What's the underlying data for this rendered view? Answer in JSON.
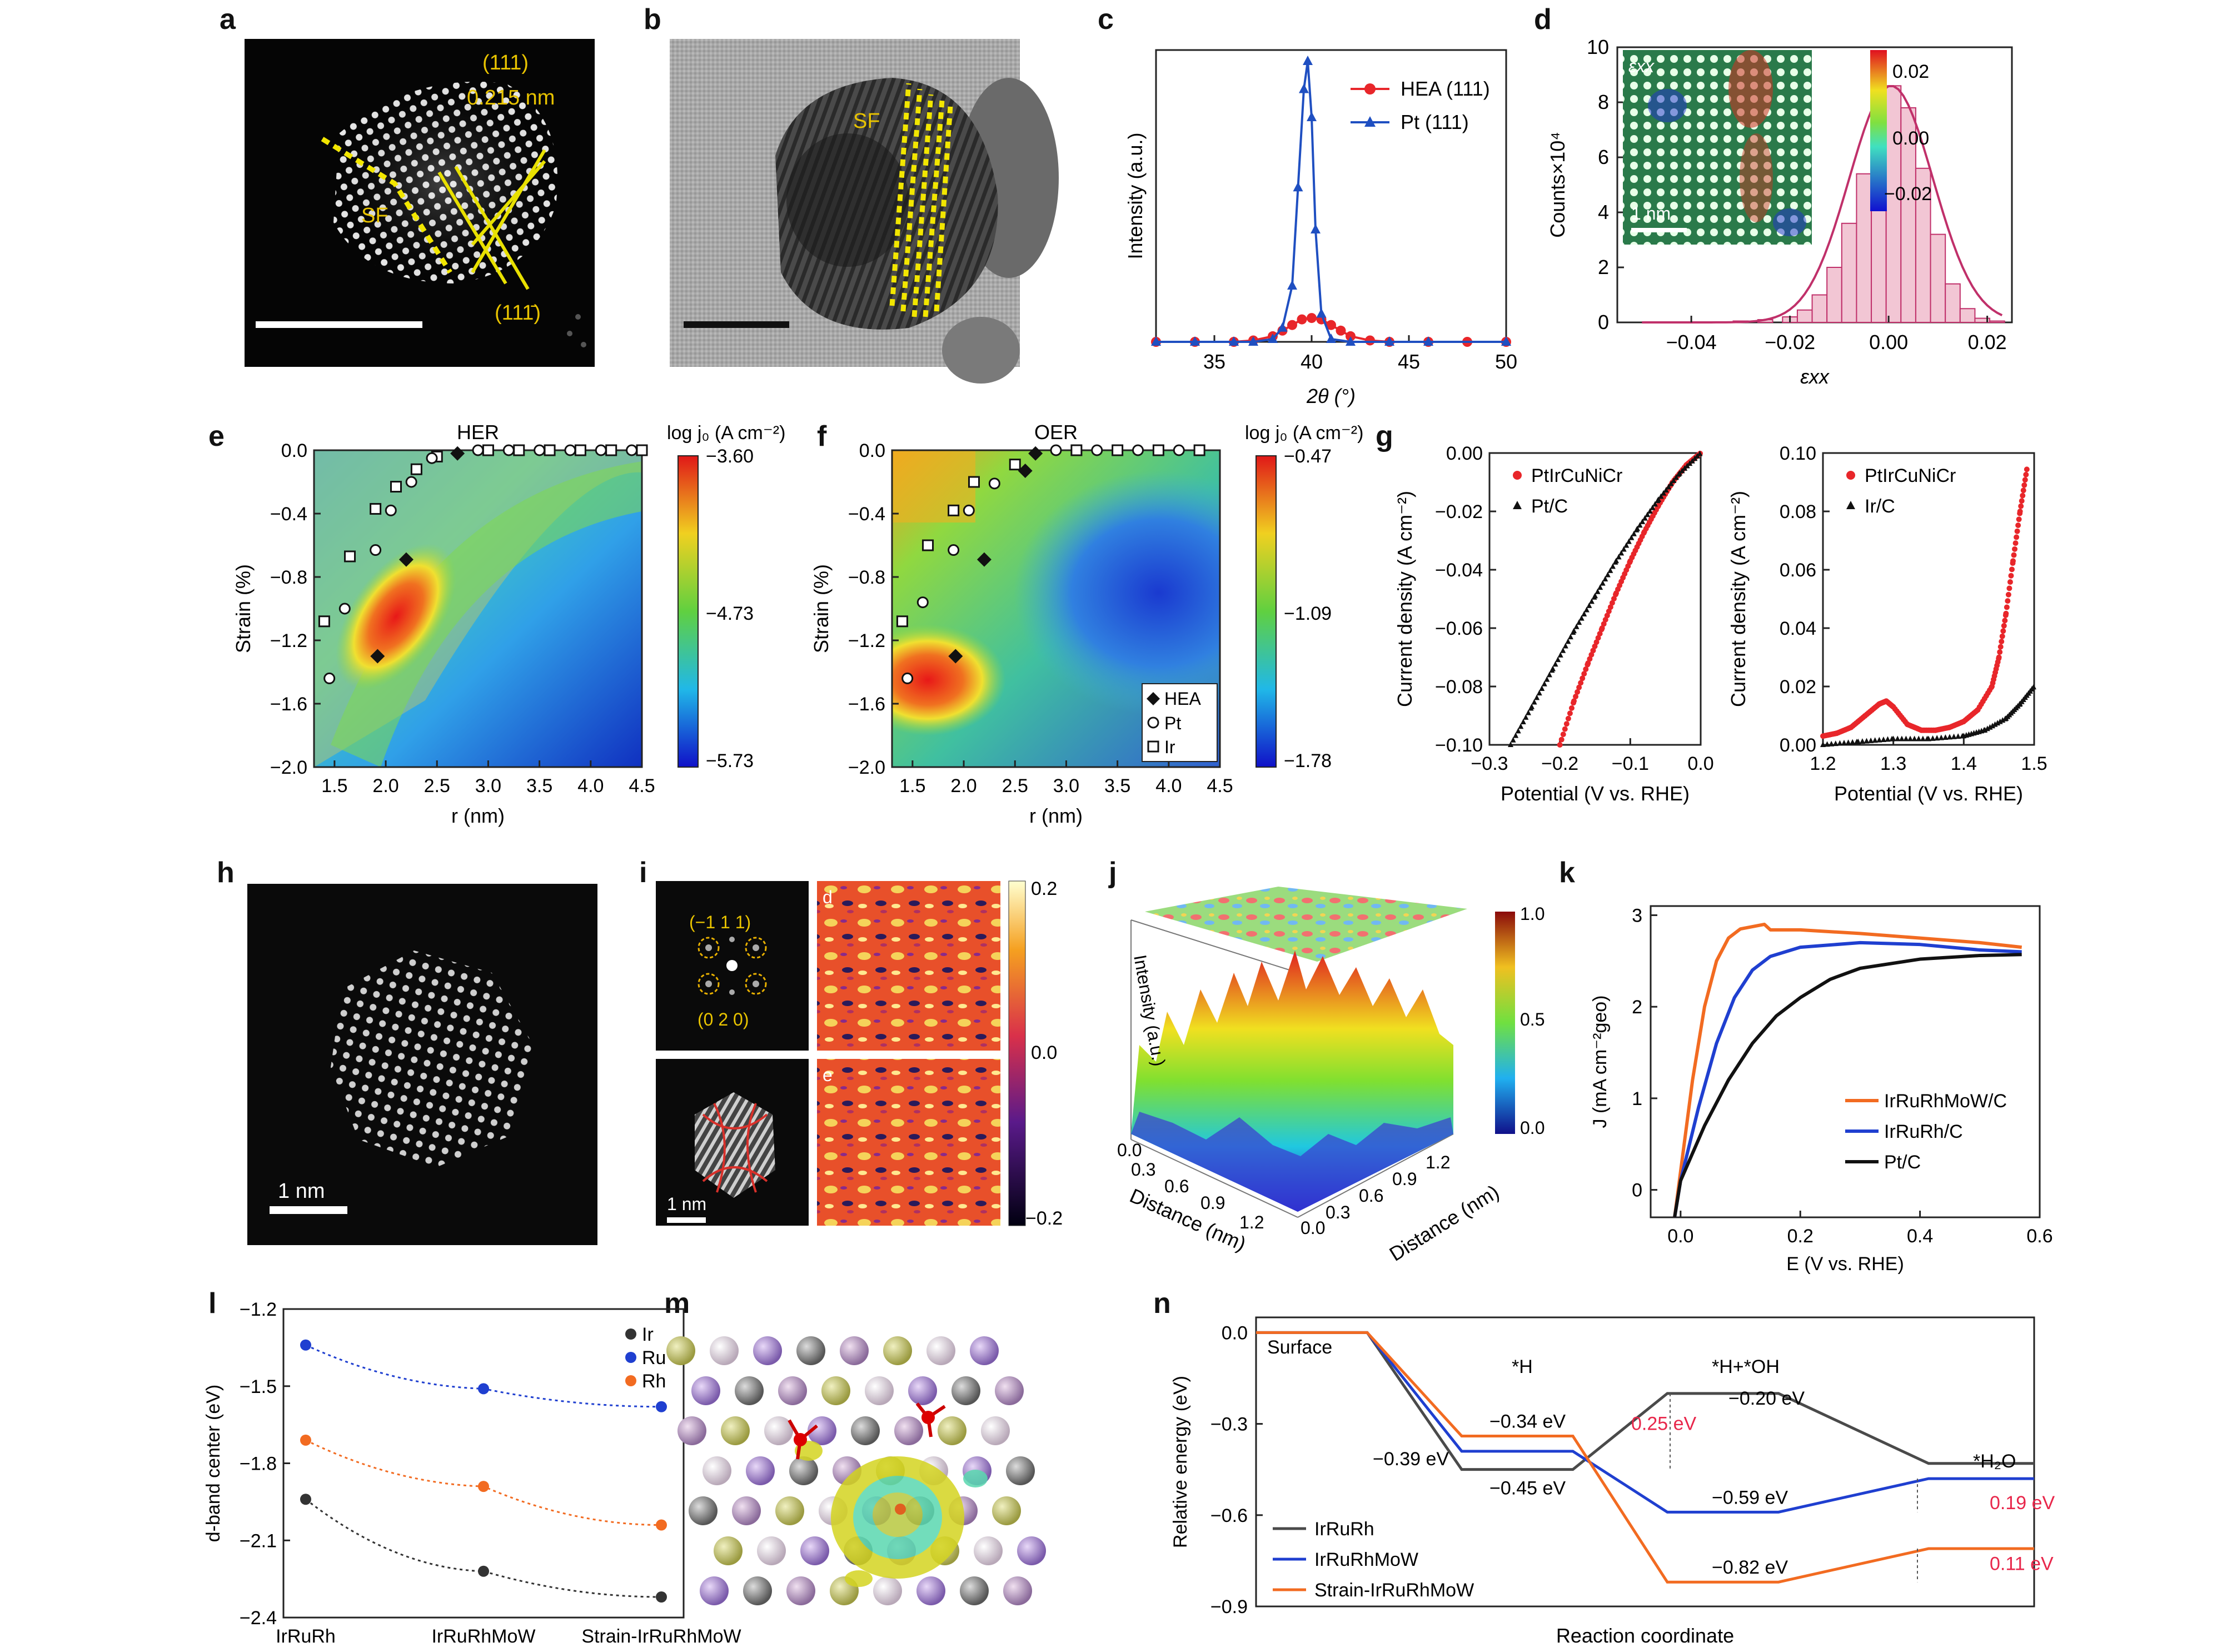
{
  "letters": {
    "a": "a",
    "b": "b",
    "c": "c",
    "d": "d",
    "e": "e",
    "f": "f",
    "g": "g",
    "h": "h",
    "i": "i",
    "j": "j",
    "k": "k",
    "l": "l",
    "m": "m",
    "n": "n"
  },
  "panel_a": {
    "plane1": "(111)",
    "spacing": "0.215 nm",
    "sf": "SF",
    "plane2": "(111̄)"
  },
  "panel_b": {
    "sf": "SF"
  },
  "panel_c": {
    "chart_data": {
      "type": "line",
      "xlabel": "2θ (°)",
      "ylabel": "Intensity (a.u.)",
      "xlim": [
        32,
        50
      ],
      "xticks": [
        35,
        40,
        45,
        50
      ],
      "series": [
        {
          "name": "HEA (111)",
          "color": "#e8262a",
          "x": [
            32,
            34,
            36,
            37,
            38,
            38.5,
            39,
            39.5,
            40,
            40.5,
            41,
            41.5,
            42,
            43,
            44,
            46,
            48,
            50
          ],
          "y": [
            0,
            0,
            0,
            0.005,
            0.02,
            0.04,
            0.06,
            0.08,
            0.085,
            0.08,
            0.06,
            0.04,
            0.02,
            0.005,
            0,
            0,
            0,
            0
          ]
        },
        {
          "name": "Pt (111)",
          "color": "#1f4fc1",
          "x": [
            32,
            34,
            36,
            37,
            38,
            38.5,
            39,
            39.3,
            39.6,
            39.8,
            40,
            40.2,
            40.5,
            41,
            42,
            44,
            46,
            50
          ],
          "y": [
            0,
            0,
            0,
            0,
            0.01,
            0.05,
            0.2,
            0.55,
            0.9,
            1.0,
            0.8,
            0.4,
            0.1,
            0.01,
            0,
            0,
            0,
            0
          ]
        }
      ]
    }
  },
  "panel_d": {
    "chart_data": {
      "type": "bar",
      "xlabel": "εxx",
      "ylabel": "Counts×10⁴",
      "xlim": [
        -0.055,
        0.025
      ],
      "ylim": [
        0,
        10
      ],
      "xticks": [
        -0.04,
        -0.02,
        0.0,
        0.02
      ],
      "yticks": [
        0,
        2,
        4,
        6,
        8,
        10
      ],
      "bins_center": [
        -0.035,
        -0.03,
        -0.025,
        -0.02,
        -0.017,
        -0.014,
        -0.011,
        -0.008,
        -0.005,
        -0.002,
        0.001,
        0.004,
        0.007,
        0.01,
        0.013,
        0.016,
        0.019,
        0.022
      ],
      "values": [
        0.02,
        0.05,
        0.1,
        0.2,
        0.45,
        1.0,
        2.0,
        3.6,
        5.4,
        7.2,
        8.6,
        7.8,
        5.6,
        3.2,
        1.4,
        0.5,
        0.15,
        0.05
      ]
    },
    "colorbar": {
      "ticks": [
        "0.02",
        "0.00",
        "−0.02"
      ]
    },
    "inset_label": "εxx",
    "scale": "1 nm"
  },
  "panel_e": {
    "title": "HER",
    "cbar_title": "log j₀ (A cm⁻²)",
    "cbar_ticks": [
      "−3.60",
      "−4.73",
      "−5.73"
    ],
    "chart_data": {
      "type": "heatmap",
      "xlabel": "r (nm)",
      "ylabel": "Strain (%)",
      "xlim": [
        1.3,
        4.5
      ],
      "ylim": [
        -2.0,
        0.0
      ],
      "xticks": [
        "1.5",
        "2.0",
        "2.5",
        "3.0",
        "3.5",
        "4.0",
        "4.5"
      ],
      "yticks": [
        "0.0",
        "−0.4",
        "−0.8",
        "−1.2",
        "−1.6",
        "−2.0"
      ],
      "HEA": [
        [
          2.7,
          -0.02
        ],
        [
          2.2,
          -0.69
        ],
        [
          1.92,
          -1.3
        ]
      ],
      "Pt": [
        [
          1.45,
          -1.44
        ],
        [
          1.6,
          -1.0
        ],
        [
          1.9,
          -0.63
        ],
        [
          2.05,
          -0.38
        ],
        [
          2.25,
          -0.2
        ],
        [
          2.45,
          -0.05
        ],
        [
          2.9,
          0
        ],
        [
          3.2,
          0
        ],
        [
          3.5,
          0
        ],
        [
          3.8,
          0
        ],
        [
          4.1,
          0
        ],
        [
          4.4,
          0
        ]
      ],
      "Ir": [
        [
          1.4,
          -1.08
        ],
        [
          1.65,
          -0.67
        ],
        [
          1.9,
          -0.37
        ],
        [
          2.1,
          -0.23
        ],
        [
          2.3,
          -0.12
        ],
        [
          2.5,
          -0.04
        ],
        [
          3.0,
          0
        ],
        [
          3.3,
          0
        ],
        [
          3.6,
          0
        ],
        [
          3.9,
          0
        ],
        [
          4.2,
          0
        ],
        [
          4.5,
          0
        ]
      ]
    }
  },
  "panel_f": {
    "title": "OER",
    "cbar_title": "log j₀ (A cm⁻²)",
    "cbar_ticks": [
      "−0.47",
      "−1.09",
      "−1.78"
    ],
    "legend": [
      "HEA",
      "Pt",
      "Ir"
    ],
    "chart_data": {
      "type": "heatmap",
      "xlabel": "r (nm)",
      "ylabel": "Strain (%)",
      "xlim": [
        1.3,
        4.5
      ],
      "ylim": [
        -2.0,
        0.0
      ],
      "xticks": [
        "1.5",
        "2.0",
        "2.5",
        "3.0",
        "3.5",
        "4.0",
        "4.5"
      ],
      "yticks": [
        "0.0",
        "−0.4",
        "−0.8",
        "−1.2",
        "−1.6",
        "−2.0"
      ],
      "HEA": [
        [
          2.7,
          -0.02
        ],
        [
          2.6,
          -0.13
        ],
        [
          2.2,
          -0.69
        ],
        [
          1.92,
          -1.3
        ]
      ],
      "Pt": [
        [
          1.45,
          -1.44
        ],
        [
          1.6,
          -0.96
        ],
        [
          1.9,
          -0.63
        ],
        [
          2.05,
          -0.38
        ],
        [
          2.3,
          -0.21
        ],
        [
          2.9,
          0
        ],
        [
          3.3,
          0
        ],
        [
          3.7,
          0
        ],
        [
          4.1,
          0
        ]
      ],
      "Ir": [
        [
          1.4,
          -1.08
        ],
        [
          1.65,
          -0.6
        ],
        [
          1.9,
          -0.38
        ],
        [
          2.1,
          -0.2
        ],
        [
          2.5,
          -0.09
        ],
        [
          3.1,
          0
        ],
        [
          3.5,
          0
        ],
        [
          3.9,
          0
        ],
        [
          4.3,
          0
        ]
      ]
    }
  },
  "panel_g1": {
    "chart_data": {
      "type": "scatter",
      "xlabel": "Potential (V vs. RHE)",
      "ylabel": "Current density (A cm⁻²)",
      "xlim": [
        -0.3,
        0.0
      ],
      "ylim": [
        -0.1,
        0.0
      ],
      "xticks": [
        "−0.3",
        "−0.2",
        "−0.1",
        "0.0"
      ],
      "yticks": [
        "0.00",
        "−0.02",
        "−0.04",
        "−0.06",
        "−0.08",
        "−0.10"
      ],
      "series": [
        {
          "name": "PtIrCuNiCr",
          "color": "#e8262a",
          "x": [
            -0.2,
            -0.18,
            -0.16,
            -0.14,
            -0.12,
            -0.1,
            -0.08,
            -0.06,
            -0.04,
            -0.02,
            0.0
          ],
          "y": [
            -0.1,
            -0.085,
            -0.072,
            -0.06,
            -0.048,
            -0.037,
            -0.027,
            -0.018,
            -0.01,
            -0.004,
            0
          ]
        },
        {
          "name": "Pt/C",
          "color": "#111111",
          "x": [
            -0.27,
            -0.24,
            -0.21,
            -0.18,
            -0.15,
            -0.12,
            -0.09,
            -0.06,
            -0.03,
            0.0
          ],
          "y": [
            -0.1,
            -0.087,
            -0.074,
            -0.061,
            -0.049,
            -0.037,
            -0.026,
            -0.016,
            -0.007,
            0
          ]
        }
      ]
    }
  },
  "panel_g2": {
    "chart_data": {
      "type": "scatter",
      "xlabel": "Potential (V vs. RHE)",
      "ylabel": "Current density (A cm⁻²)",
      "xlim": [
        1.2,
        1.5
      ],
      "ylim": [
        0.0,
        0.1
      ],
      "xticks": [
        "1.2",
        "1.3",
        "1.4",
        "1.5"
      ],
      "yticks": [
        "0.00",
        "0.02",
        "0.04",
        "0.06",
        "0.08",
        "0.10"
      ],
      "series": [
        {
          "name": "PtIrCuNiCr",
          "color": "#e8262a",
          "x": [
            1.2,
            1.22,
            1.24,
            1.26,
            1.28,
            1.29,
            1.3,
            1.32,
            1.34,
            1.36,
            1.38,
            1.4,
            1.42,
            1.44,
            1.45,
            1.46,
            1.47,
            1.48,
            1.49
          ],
          "y": [
            0.003,
            0.004,
            0.006,
            0.01,
            0.014,
            0.015,
            0.013,
            0.007,
            0.005,
            0.005,
            0.006,
            0.008,
            0.012,
            0.02,
            0.03,
            0.045,
            0.063,
            0.08,
            0.095
          ]
        },
        {
          "name": "Ir/C",
          "color": "#111111",
          "x": [
            1.2,
            1.25,
            1.3,
            1.35,
            1.4,
            1.43,
            1.46,
            1.48,
            1.5
          ],
          "y": [
            0,
            0.001,
            0.002,
            0.002,
            0.003,
            0.005,
            0.009,
            0.014,
            0.02
          ]
        }
      ]
    }
  },
  "panel_h": {
    "scale": "1 nm"
  },
  "panel_i": {
    "plane1": "(−1 1 1)",
    "plane2": "(0 2 0)",
    "map_d": "d",
    "map_e": "e",
    "scale": "1 nm",
    "cbar_ticks": [
      "0.2",
      "0.0",
      "−0.2"
    ]
  },
  "panel_j": {
    "zlabel": "Intensity (a.u.)",
    "xlabel": "Distance (nm)",
    "ylabel": "Distance (nm)",
    "xticks": [
      "0.0",
      "0.3",
      "0.6",
      "0.9",
      "1.2"
    ],
    "yticks": [
      "0.0",
      "0.3",
      "0.6",
      "0.9",
      "1.2"
    ],
    "cbar_ticks": [
      "1.0",
      "0.5",
      "0.0"
    ]
  },
  "panel_k": {
    "chart_data": {
      "type": "line",
      "xlabel": "E (V vs. RHE)",
      "ylabel": "J (mA cm⁻²geo)",
      "xlim": [
        -0.05,
        0.6
      ],
      "ylim": [
        -0.3,
        3.1
      ],
      "xticks": [
        "0.0",
        "0.2",
        "0.4",
        "0.6"
      ],
      "yticks": [
        "0",
        "1",
        "2",
        "3"
      ],
      "series": [
        {
          "name": "IrRuRhMoW/C",
          "color": "#f26b21",
          "x": [
            -0.01,
            0.0,
            0.02,
            0.04,
            0.06,
            0.08,
            0.1,
            0.14,
            0.15,
            0.2,
            0.3,
            0.4,
            0.5,
            0.57
          ],
          "y": [
            -0.3,
            0.2,
            1.2,
            2.0,
            2.5,
            2.75,
            2.85,
            2.9,
            2.84,
            2.84,
            2.8,
            2.75,
            2.7,
            2.65
          ]
        },
        {
          "name": "IrRuRh/C",
          "color": "#1f3fd0",
          "x": [
            -0.01,
            0.0,
            0.03,
            0.06,
            0.09,
            0.12,
            0.15,
            0.2,
            0.3,
            0.4,
            0.5,
            0.57
          ],
          "y": [
            -0.3,
            0.1,
            0.9,
            1.6,
            2.1,
            2.4,
            2.55,
            2.65,
            2.7,
            2.68,
            2.62,
            2.6
          ]
        },
        {
          "name": "Pt/C",
          "color": "#111111",
          "x": [
            -0.01,
            0.0,
            0.04,
            0.08,
            0.12,
            0.16,
            0.2,
            0.25,
            0.3,
            0.4,
            0.5,
            0.57
          ],
          "y": [
            -0.3,
            0.1,
            0.7,
            1.2,
            1.6,
            1.9,
            2.1,
            2.3,
            2.42,
            2.52,
            2.56,
            2.57
          ]
        }
      ]
    }
  },
  "panel_l": {
    "chart_data": {
      "type": "line",
      "ylabel": "d-band center (eV)",
      "categories": [
        "IrRuRh",
        "IrRuRhMoW",
        "Strain-IrRuRhMoW"
      ],
      "ylim": [
        -2.4,
        -1.2
      ],
      "yticks": [
        "−1.2",
        "−1.5",
        "−1.8",
        "−2.1",
        "−2.4"
      ],
      "series": [
        {
          "name": "Ir",
          "color": "#333333",
          "values": [
            -1.94,
            -2.22,
            -2.32
          ]
        },
        {
          "name": "Ru",
          "color": "#1f3fd0",
          "values": [
            -1.34,
            -1.51,
            -1.58
          ]
        },
        {
          "name": "Rh",
          "color": "#f26b21",
          "values": [
            -1.71,
            -1.89,
            -2.04
          ]
        }
      ]
    }
  },
  "panel_n": {
    "chart_data": {
      "type": "line",
      "xlabel": "Reaction coordinate",
      "ylabel": "Relative energy (eV)",
      "ylim": [
        -0.9,
        0.05
      ],
      "yticks": [
        "0.0",
        "−0.3",
        "−0.6",
        "−0.9"
      ],
      "states": [
        "Surface",
        "*H",
        "*H+*OH",
        "*H₂O"
      ],
      "series": [
        {
          "name": "IrRuRh",
          "color": "#4a4a4a",
          "values": [
            0.0,
            -0.45,
            -0.2,
            -0.43
          ]
        },
        {
          "name": "IrRuRhMoW",
          "color": "#1f3fd0",
          "values": [
            0.0,
            -0.39,
            -0.59,
            -0.48
          ]
        },
        {
          "name": "Strain-IrRuRhMoW",
          "color": "#f26b21",
          "values": [
            0.0,
            -0.34,
            -0.82,
            -0.71
          ]
        }
      ],
      "annotations": [
        "−0.34 eV",
        "−0.39 eV",
        "−0.45 eV",
        "−0.20 eV",
        "−0.59 eV",
        "−0.82 eV"
      ],
      "barriers": [
        {
          "text": "0.25 eV",
          "color": "#e8264a"
        },
        {
          "text": "0.19 eV",
          "color": "#e8264a"
        },
        {
          "text": "0.11 eV",
          "color": "#e8264a"
        }
      ]
    }
  }
}
